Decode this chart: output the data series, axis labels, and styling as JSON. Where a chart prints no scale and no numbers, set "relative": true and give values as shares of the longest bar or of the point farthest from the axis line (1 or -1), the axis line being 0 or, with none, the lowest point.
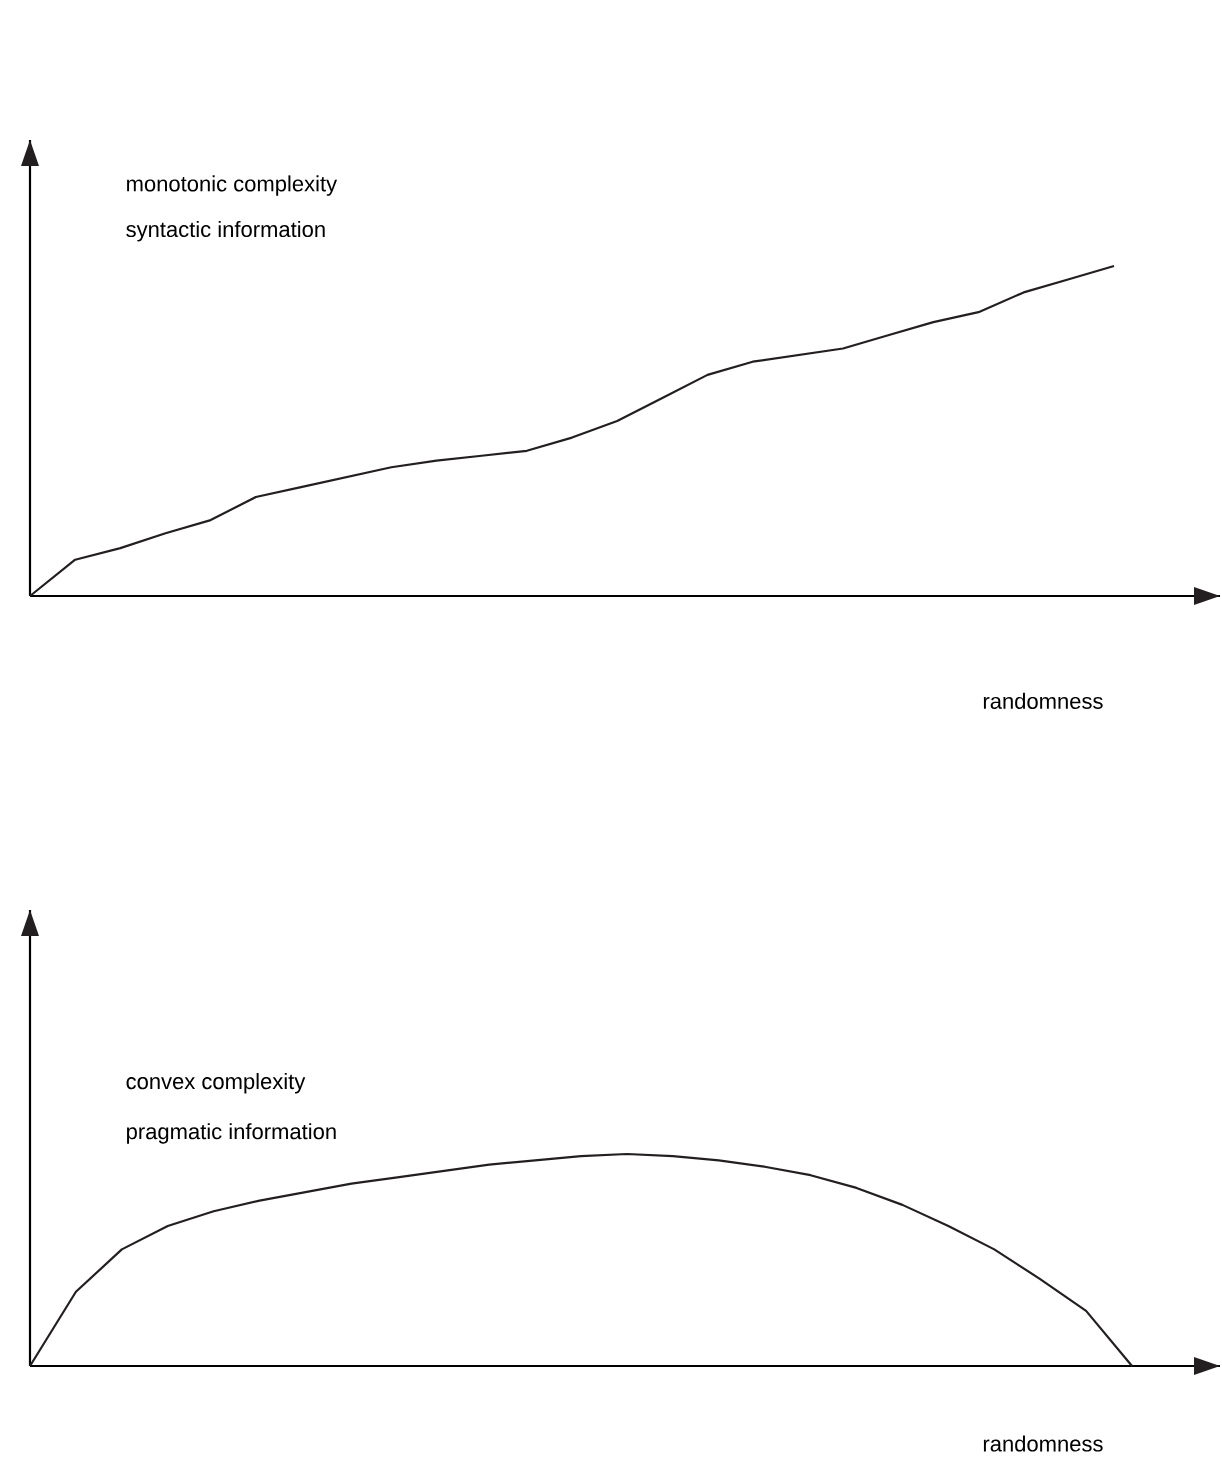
{
  "chart_data": [
    {
      "type": "line",
      "relative": true,
      "color": "#231f20",
      "xlabel": "randomness",
      "annotations": [
        "monotonic complexity",
        "syntactic information"
      ],
      "categories": [
        null,
        null,
        null,
        null,
        null,
        null,
        null,
        null,
        null,
        null,
        null,
        null,
        null,
        null,
        null,
        null,
        null,
        null,
        null,
        null,
        null,
        null,
        null,
        null,
        null
      ],
      "values": [
        0,
        0.11,
        0.145,
        0.19,
        0.23,
        0.3,
        0.33,
        0.36,
        0.39,
        0.41,
        0.425,
        0.44,
        0.48,
        0.53,
        0.6,
        0.67,
        0.71,
        0.73,
        0.75,
        0.79,
        0.83,
        0.86,
        0.92,
        0.96,
        1
      ]
    },
    {
      "type": "line",
      "relative": true,
      "color": "#231f20",
      "xlabel": "randomness",
      "annotations": [
        "convex complexity",
        "pragmatic information"
      ],
      "categories": [
        null,
        null,
        null,
        null,
        null,
        null,
        null,
        null,
        null,
        null,
        null,
        null,
        null,
        null,
        null,
        null,
        null,
        null,
        null,
        null,
        null,
        null,
        null,
        null,
        null
      ],
      "values": [
        0,
        0.35,
        0.55,
        0.66,
        0.73,
        0.78,
        0.82,
        0.86,
        0.89,
        0.92,
        0.95,
        0.97,
        0.99,
        1,
        0.99,
        0.97,
        0.94,
        0.9,
        0.84,
        0.76,
        0.66,
        0.55,
        0.41,
        0.26,
        0
      ]
    }
  ]
}
